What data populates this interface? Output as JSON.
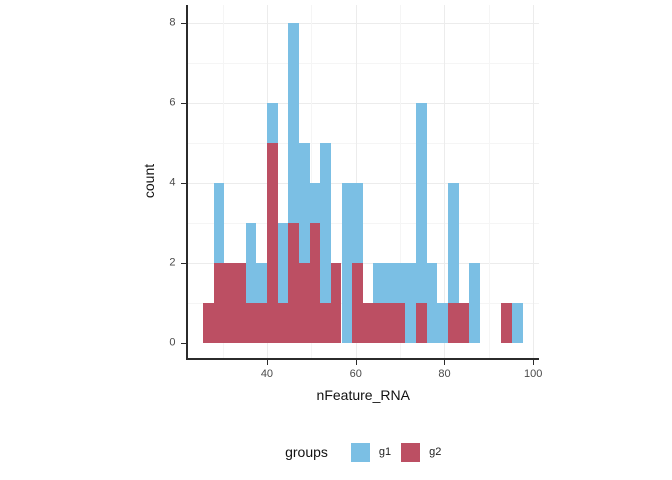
{
  "colors": {
    "g1_blue": "#7BBFE4",
    "g2_red": "#BC4F63",
    "axis_line": "#2b2b2b",
    "grid_major": "#ececec",
    "grid_minor": "#f5f5f5",
    "tick_text": "#4a4a4a",
    "title_text": "#111111",
    "background": "#ffffff"
  },
  "chart_data": {
    "type": "bar",
    "subtype": "stacked-histogram",
    "title": "",
    "xlabel": "nFeature_RNA",
    "ylabel": "count",
    "x_ticks": [
      40,
      60,
      80,
      100
    ],
    "x_minor_gridlines": [
      30,
      50,
      70,
      90
    ],
    "y_ticks": [
      0,
      2,
      4,
      6,
      8
    ],
    "y_minor_gridlines": [
      1,
      3,
      5,
      7
    ],
    "xlim": [
      22.1,
      101.3
    ],
    "ylim": [
      0,
      8.45
    ],
    "bin_width": 2.4,
    "grid": "on",
    "legend": {
      "title": "groups",
      "position": "bottom",
      "entries": [
        {
          "name": "g1",
          "label": "g1",
          "color": "#7BBFE4"
        },
        {
          "name": "g2",
          "label": "g2",
          "color": "#BC4F63"
        }
      ]
    },
    "stack_order_bottom_to_top": [
      "g2",
      "g1"
    ],
    "bins": [
      {
        "x0": 25.6,
        "g2": 1,
        "g1": 0
      },
      {
        "x0": 28.0,
        "g2": 2,
        "g1": 2
      },
      {
        "x0": 30.4,
        "g2": 2,
        "g1": 0
      },
      {
        "x0": 32.8,
        "g2": 2,
        "g1": 0
      },
      {
        "x0": 35.2,
        "g2": 1,
        "g1": 2
      },
      {
        "x0": 37.6,
        "g2": 1,
        "g1": 1
      },
      {
        "x0": 40.0,
        "g2": 5,
        "g1": 1
      },
      {
        "x0": 42.4,
        "g2": 1,
        "g1": 2
      },
      {
        "x0": 44.8,
        "g2": 3,
        "g1": 5
      },
      {
        "x0": 47.2,
        "g2": 2,
        "g1": 3
      },
      {
        "x0": 49.6,
        "g2": 3,
        "g1": 1
      },
      {
        "x0": 52.0,
        "g2": 1,
        "g1": 4
      },
      {
        "x0": 54.4,
        "g2": 2,
        "g1": 0
      },
      {
        "x0": 56.8,
        "g2": 0,
        "g1": 4
      },
      {
        "x0": 59.2,
        "g2": 2,
        "g1": 2
      },
      {
        "x0": 61.6,
        "g2": 1,
        "g1": 0
      },
      {
        "x0": 64.0,
        "g2": 1,
        "g1": 1
      },
      {
        "x0": 66.4,
        "g2": 1,
        "g1": 1
      },
      {
        "x0": 68.8,
        "g2": 1,
        "g1": 1
      },
      {
        "x0": 71.2,
        "g2": 0,
        "g1": 2
      },
      {
        "x0": 73.6,
        "g2": 1,
        "g1": 5
      },
      {
        "x0": 76.0,
        "g2": 0,
        "g1": 2
      },
      {
        "x0": 78.4,
        "g2": 0,
        "g1": 1
      },
      {
        "x0": 80.8,
        "g2": 1,
        "g1": 3
      },
      {
        "x0": 83.2,
        "g2": 1,
        "g1": 0
      },
      {
        "x0": 85.6,
        "g2": 0,
        "g1": 2
      },
      {
        "x0": 88.0,
        "g2": 0,
        "g1": 0
      },
      {
        "x0": 90.4,
        "g2": 0,
        "g1": 0
      },
      {
        "x0": 92.8,
        "g2": 1,
        "g1": 0
      },
      {
        "x0": 95.2,
        "g2": 0,
        "g1": 1
      }
    ]
  }
}
